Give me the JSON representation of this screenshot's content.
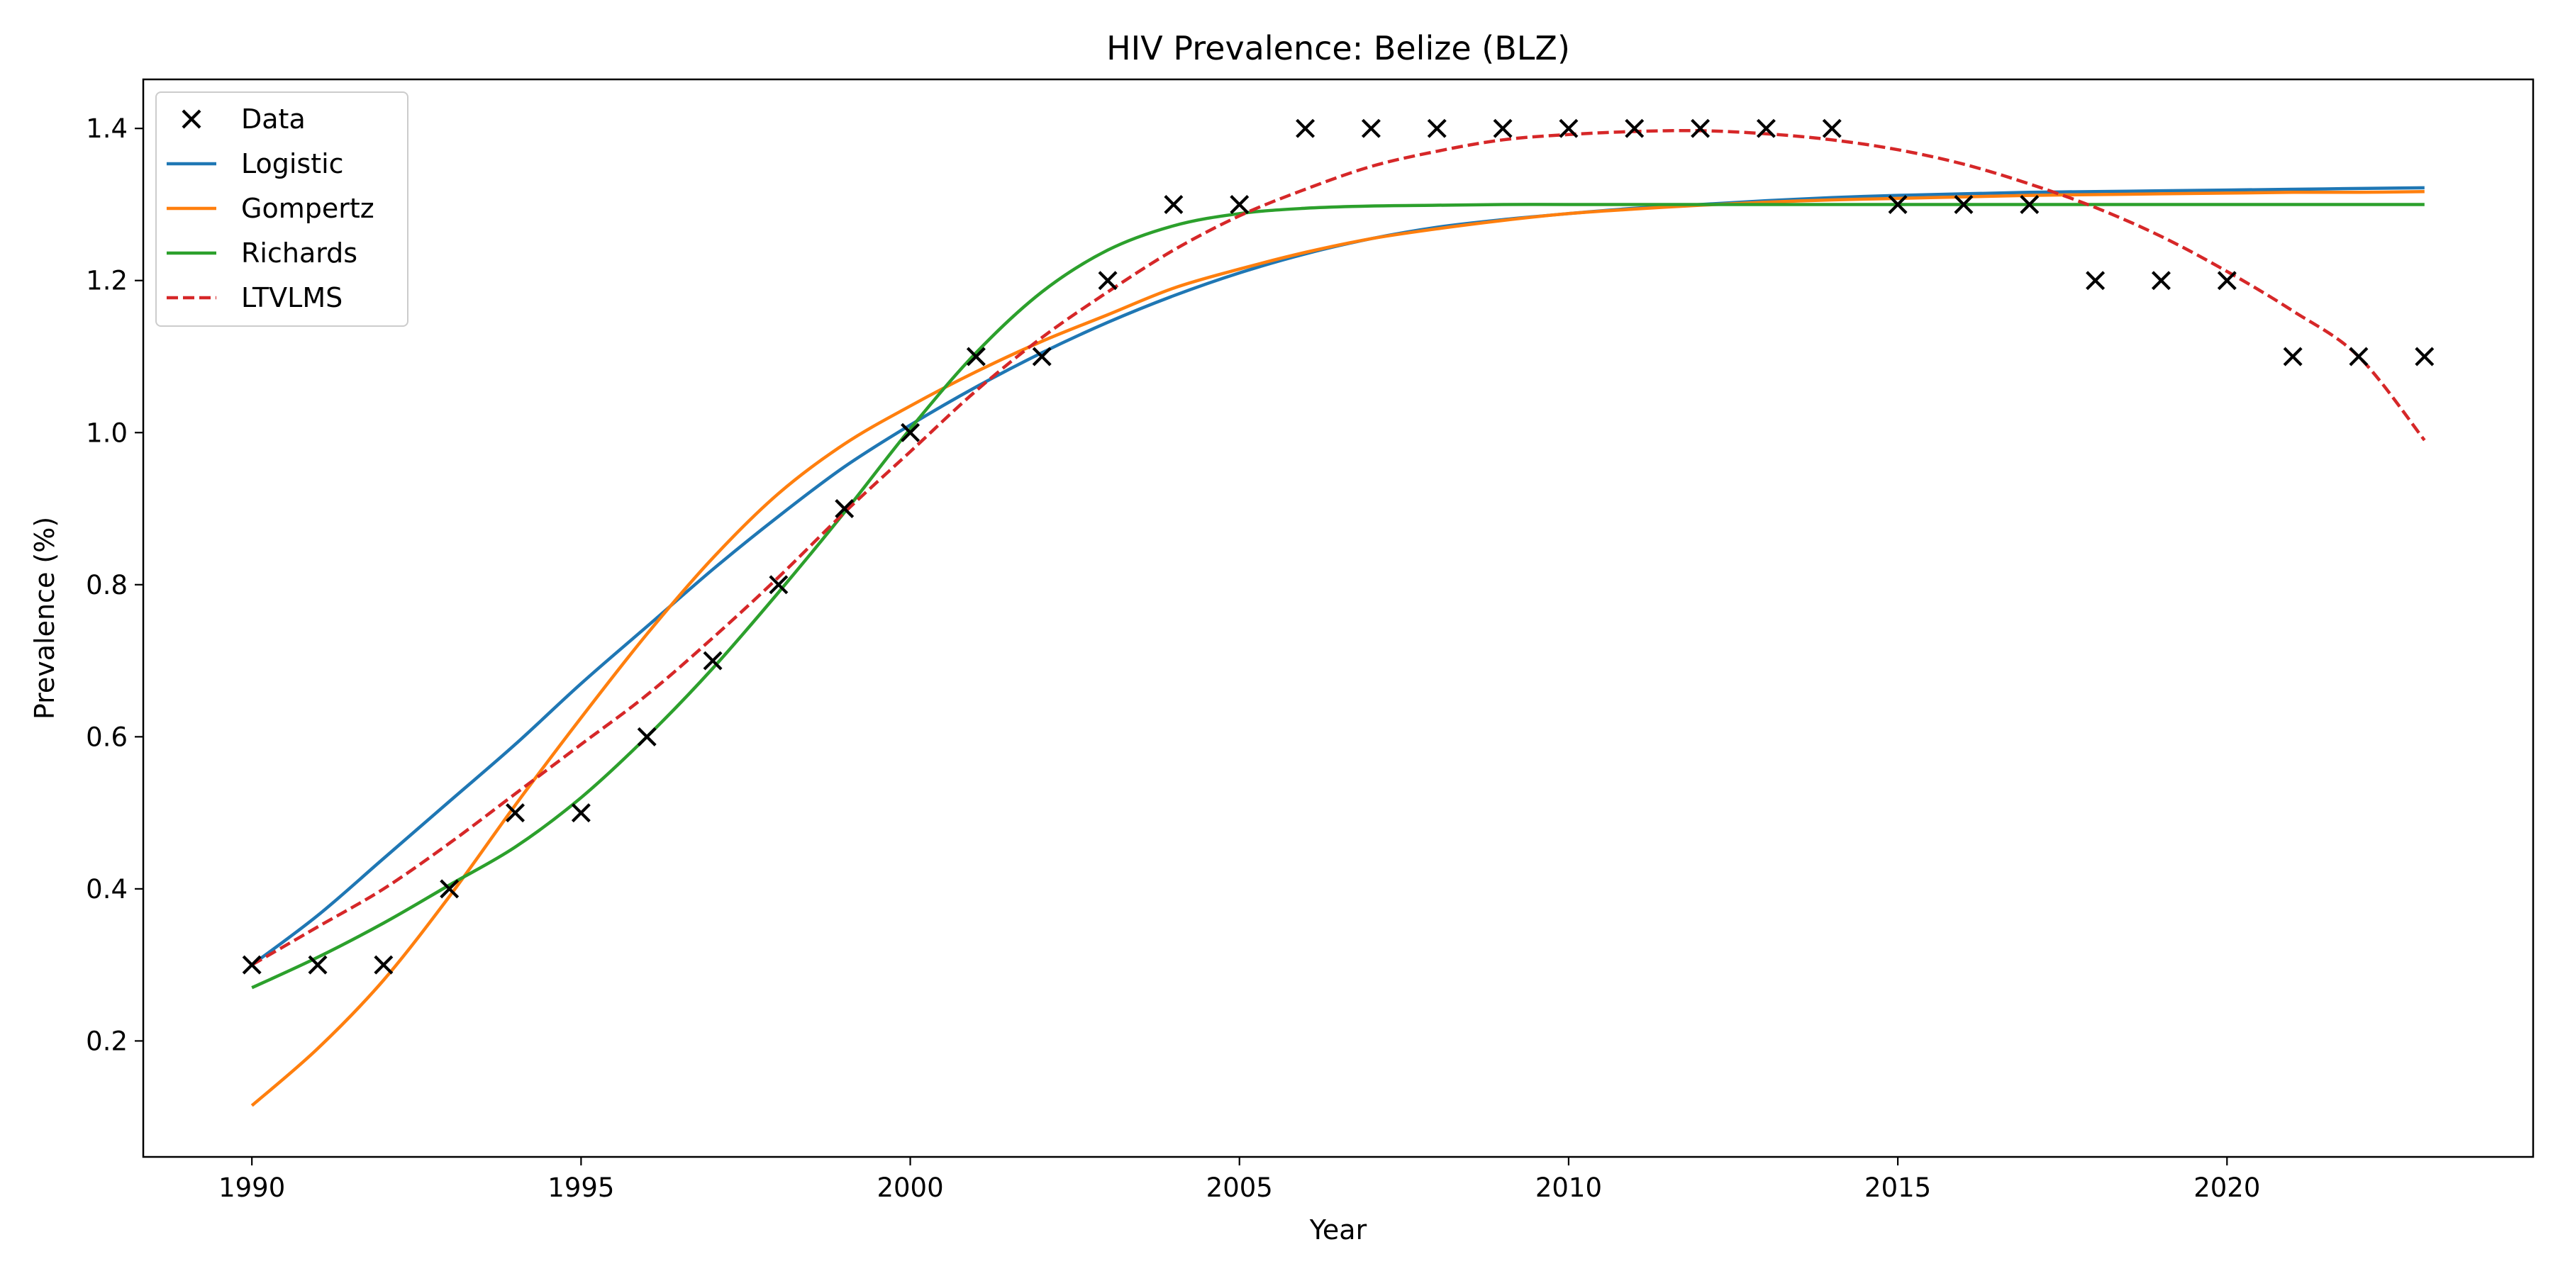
{
  "chart_data": {
    "type": "line",
    "title": "HIV Prevalence: Belize (BLZ)",
    "xlabel": "Year",
    "ylabel": "Prevalence (%)",
    "xlim": [
      1988.35,
      2024.65
    ],
    "ylim": [
      0.0475,
      1.4645
    ],
    "xticks": [
      1990,
      1995,
      2000,
      2005,
      2010,
      2015,
      2020
    ],
    "yticks": [
      0.2,
      0.4,
      0.6,
      0.8,
      1.0,
      1.2,
      1.4
    ],
    "ytick_labels": [
      "0.2",
      "0.4",
      "0.6",
      "0.8",
      "1.0",
      "1.2",
      "1.4"
    ],
    "grid": false,
    "legend_position": "top-left",
    "data_points": {
      "name": "Data",
      "marker": "x",
      "color": "#000000",
      "x": [
        1990,
        1991,
        1992,
        1993,
        1994,
        1995,
        1996,
        1997,
        1998,
        1999,
        2000,
        2001,
        2002,
        2003,
        2004,
        2005,
        2006,
        2007,
        2008,
        2009,
        2010,
        2011,
        2012,
        2013,
        2014,
        2015,
        2016,
        2017,
        2018,
        2019,
        2020,
        2021,
        2022,
        2023
      ],
      "y": [
        0.3,
        0.3,
        0.3,
        0.4,
        0.5,
        0.5,
        0.6,
        0.7,
        0.8,
        0.9,
        1.0,
        1.1,
        1.1,
        1.2,
        1.3,
        1.3,
        1.4,
        1.4,
        1.4,
        1.4,
        1.4,
        1.4,
        1.4,
        1.4,
        1.4,
        1.3,
        1.3,
        1.3,
        1.2,
        1.2,
        1.2,
        1.1,
        1.1,
        1.1
      ]
    },
    "series": [
      {
        "name": "Logistic",
        "color": "#1f77b4",
        "dash": "solid",
        "x": [
          1990,
          1991,
          1992,
          1993,
          1994,
          1995,
          1996,
          1997,
          1998,
          1999,
          2000,
          2001,
          2002,
          2003,
          2004,
          2005,
          2006,
          2007,
          2008,
          2009,
          2010,
          2011,
          2012,
          2013,
          2014,
          2015,
          2016,
          2017,
          2018,
          2019,
          2020,
          2021,
          2022,
          2023
        ],
        "y": [
          0.3,
          0.365,
          0.44,
          0.515,
          0.59,
          0.67,
          0.745,
          0.82,
          0.89,
          0.955,
          1.01,
          1.06,
          1.105,
          1.145,
          1.18,
          1.21,
          1.235,
          1.255,
          1.27,
          1.28,
          1.288,
          1.295,
          1.3,
          1.305,
          1.309,
          1.312,
          1.314,
          1.316,
          1.317,
          1.318,
          1.319,
          1.32,
          1.321,
          1.322
        ]
      },
      {
        "name": "Gompertz",
        "color": "#ff7f0e",
        "dash": "solid",
        "x": [
          1990,
          1991,
          1992,
          1993,
          1994,
          1995,
          1996,
          1997,
          1998,
          1999,
          2000,
          2001,
          2002,
          2003,
          2004,
          2005,
          2006,
          2007,
          2008,
          2009,
          2010,
          2011,
          2012,
          2013,
          2014,
          2015,
          2016,
          2017,
          2018,
          2019,
          2020,
          2021,
          2022,
          2023
        ],
        "y": [
          0.115,
          0.19,
          0.28,
          0.39,
          0.51,
          0.625,
          0.735,
          0.835,
          0.92,
          0.985,
          1.035,
          1.08,
          1.12,
          1.155,
          1.19,
          1.215,
          1.237,
          1.255,
          1.268,
          1.279,
          1.288,
          1.294,
          1.299,
          1.303,
          1.306,
          1.308,
          1.31,
          1.312,
          1.313,
          1.314,
          1.315,
          1.316,
          1.316,
          1.317
        ]
      },
      {
        "name": "Richards",
        "color": "#2ca02c",
        "dash": "solid",
        "x": [
          1990,
          1991,
          1992,
          1993,
          1994,
          1995,
          1996,
          1997,
          1998,
          1999,
          2000,
          2001,
          2002,
          2003,
          2004,
          2005,
          2006,
          2007,
          2008,
          2009,
          2010,
          2011,
          2012,
          2013,
          2014,
          2015,
          2016,
          2017,
          2018,
          2019,
          2020,
          2021,
          2022,
          2023
        ],
        "y": [
          0.27,
          0.31,
          0.355,
          0.405,
          0.455,
          0.52,
          0.6,
          0.69,
          0.79,
          0.895,
          1.005,
          1.105,
          1.185,
          1.24,
          1.272,
          1.288,
          1.295,
          1.298,
          1.299,
          1.3,
          1.3,
          1.3,
          1.3,
          1.3,
          1.3,
          1.3,
          1.3,
          1.3,
          1.3,
          1.3,
          1.3,
          1.3,
          1.3,
          1.3
        ]
      },
      {
        "name": "LTVLMS",
        "color": "#d62728",
        "dash": "dashed",
        "x": [
          1990,
          1991,
          1992,
          1993,
          1994,
          1995,
          1996,
          1997,
          1998,
          1999,
          2000,
          2001,
          2002,
          2003,
          2004,
          2005,
          2006,
          2007,
          2008,
          2009,
          2010,
          2011,
          2012,
          2013,
          2014,
          2015,
          2016,
          2017,
          2018,
          2019,
          2020,
          2021,
          2022,
          2023
        ],
        "y": [
          0.3,
          0.35,
          0.4,
          0.46,
          0.525,
          0.59,
          0.655,
          0.73,
          0.81,
          0.895,
          0.975,
          1.055,
          1.125,
          1.185,
          1.24,
          1.285,
          1.32,
          1.35,
          1.37,
          1.385,
          1.392,
          1.396,
          1.397,
          1.393,
          1.385,
          1.372,
          1.353,
          1.327,
          1.296,
          1.258,
          1.212,
          1.16,
          1.1,
          0.99
        ]
      }
    ]
  }
}
